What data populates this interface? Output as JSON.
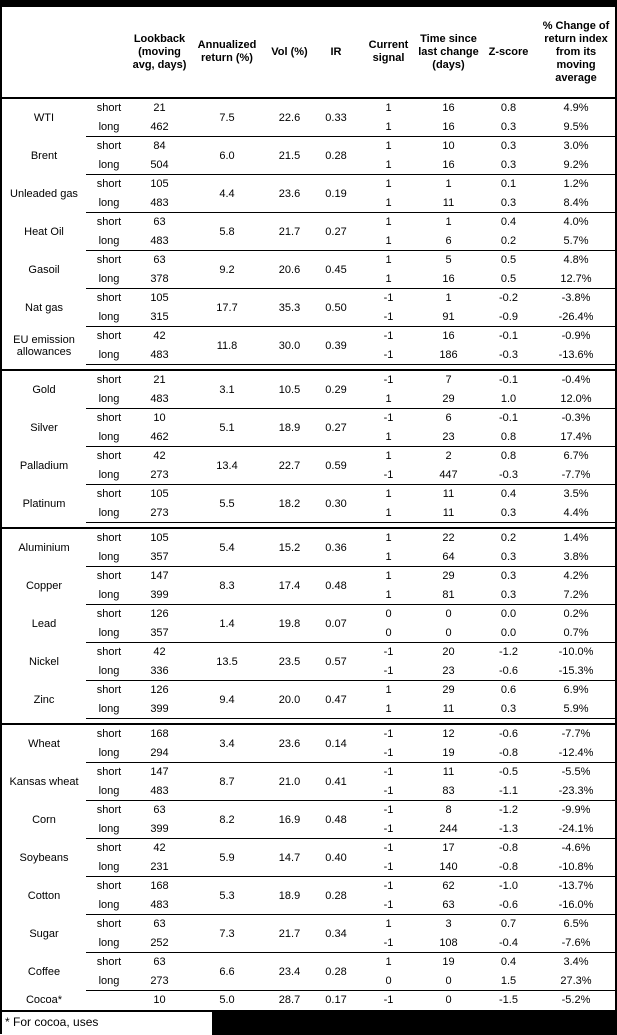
{
  "colors": {
    "text": "#000000",
    "background": "#ffffff",
    "rule": "#000000"
  },
  "table": {
    "columns": [
      {
        "key": "name",
        "label": ""
      },
      {
        "key": "position",
        "label": ""
      },
      {
        "key": "lookback",
        "label": "Lookback\n(moving\navg, days)"
      },
      {
        "key": "annualized-return",
        "label": "Annualized\nreturn (%)"
      },
      {
        "key": "vol",
        "label": "Vol (%)"
      },
      {
        "key": "ir",
        "label": "IR"
      },
      {
        "key": "current-signal",
        "label": "Current\nsignal"
      },
      {
        "key": "time-since-last-change",
        "label": "Time since\nlast change\n(days)"
      },
      {
        "key": "z-score",
        "label": "Z-score"
      },
      {
        "key": "pct-change",
        "label": "% Change of\nreturn index\nfrom its\nmoving\naverage"
      }
    ],
    "groups": [
      {
        "name": "WTI",
        "ann": "7.5",
        "vol": "22.6",
        "ir": "0.33",
        "rows": [
          {
            "pos": "short",
            "lookback": "21",
            "signal": "1",
            "time": "16",
            "z": "0.8",
            "pct": "4.9%"
          },
          {
            "pos": "long",
            "lookback": "462",
            "signal": "1",
            "time": "16",
            "z": "0.3",
            "pct": "9.5%"
          }
        ]
      },
      {
        "name": "Brent",
        "ann": "6.0",
        "vol": "21.5",
        "ir": "0.28",
        "rows": [
          {
            "pos": "short",
            "lookback": "84",
            "signal": "1",
            "time": "10",
            "z": "0.3",
            "pct": "3.0%"
          },
          {
            "pos": "long",
            "lookback": "504",
            "signal": "1",
            "time": "16",
            "z": "0.3",
            "pct": "9.2%"
          }
        ]
      },
      {
        "name": "Unleaded gas",
        "ann": "4.4",
        "vol": "23.6",
        "ir": "0.19",
        "rows": [
          {
            "pos": "short",
            "lookback": "105",
            "signal": "1",
            "time": "1",
            "z": "0.1",
            "pct": "1.2%"
          },
          {
            "pos": "long",
            "lookback": "483",
            "signal": "1",
            "time": "11",
            "z": "0.3",
            "pct": "8.4%"
          }
        ]
      },
      {
        "name": "Heat Oil",
        "ann": "5.8",
        "vol": "21.7",
        "ir": "0.27",
        "rows": [
          {
            "pos": "short",
            "lookback": "63",
            "signal": "1",
            "time": "1",
            "z": "0.4",
            "pct": "4.0%"
          },
          {
            "pos": "long",
            "lookback": "483",
            "signal": "1",
            "time": "6",
            "z": "0.2",
            "pct": "5.7%"
          }
        ]
      },
      {
        "name": "Gasoil",
        "ann": "9.2",
        "vol": "20.6",
        "ir": "0.45",
        "rows": [
          {
            "pos": "short",
            "lookback": "63",
            "signal": "1",
            "time": "5",
            "z": "0.5",
            "pct": "4.8%"
          },
          {
            "pos": "long",
            "lookback": "378",
            "signal": "1",
            "time": "16",
            "z": "0.5",
            "pct": "12.7%"
          }
        ]
      },
      {
        "name": "Nat gas",
        "ann": "17.7",
        "vol": "35.3",
        "ir": "0.50",
        "rows": [
          {
            "pos": "short",
            "lookback": "105",
            "signal": "-1",
            "time": "1",
            "z": "-0.2",
            "pct": "-3.8%"
          },
          {
            "pos": "long",
            "lookback": "315",
            "signal": "-1",
            "time": "91",
            "z": "-0.9",
            "pct": "-26.4%"
          }
        ]
      },
      {
        "name": "EU emission allowances",
        "ann": "11.8",
        "vol": "30.0",
        "ir": "0.39",
        "rows": [
          {
            "pos": "short",
            "lookback": "42",
            "signal": "-1",
            "time": "16",
            "z": "-0.1",
            "pct": "-0.9%"
          },
          {
            "pos": "long",
            "lookback": "483",
            "signal": "-1",
            "time": "186",
            "z": "-0.3",
            "pct": "-13.6%"
          }
        ]
      },
      {
        "name": "Gold",
        "section": true,
        "ann": "3.1",
        "vol": "10.5",
        "ir": "0.29",
        "rows": [
          {
            "pos": "short",
            "lookback": "21",
            "signal": "-1",
            "time": "7",
            "z": "-0.1",
            "pct": "-0.4%"
          },
          {
            "pos": "long",
            "lookback": "483",
            "signal": "1",
            "time": "29",
            "z": "1.0",
            "pct": "12.0%"
          }
        ]
      },
      {
        "name": "Silver",
        "ann": "5.1",
        "vol": "18.9",
        "ir": "0.27",
        "rows": [
          {
            "pos": "short",
            "lookback": "10",
            "signal": "-1",
            "time": "6",
            "z": "-0.1",
            "pct": "-0.3%"
          },
          {
            "pos": "long",
            "lookback": "462",
            "signal": "1",
            "time": "23",
            "z": "0.8",
            "pct": "17.4%"
          }
        ]
      },
      {
        "name": "Palladium",
        "ann": "13.4",
        "vol": "22.7",
        "ir": "0.59",
        "rows": [
          {
            "pos": "short",
            "lookback": "42",
            "signal": "1",
            "time": "2",
            "z": "0.8",
            "pct": "6.7%"
          },
          {
            "pos": "long",
            "lookback": "273",
            "signal": "-1",
            "time": "447",
            "z": "-0.3",
            "pct": "-7.7%"
          }
        ]
      },
      {
        "name": "Platinum",
        "ann": "5.5",
        "vol": "18.2",
        "ir": "0.30",
        "rows": [
          {
            "pos": "short",
            "lookback": "105",
            "signal": "1",
            "time": "11",
            "z": "0.4",
            "pct": "3.5%"
          },
          {
            "pos": "long",
            "lookback": "273",
            "signal": "1",
            "time": "11",
            "z": "0.3",
            "pct": "4.4%"
          }
        ]
      },
      {
        "name": "Aluminium",
        "section": true,
        "ann": "5.4",
        "vol": "15.2",
        "ir": "0.36",
        "rows": [
          {
            "pos": "short",
            "lookback": "105",
            "signal": "1",
            "time": "22",
            "z": "0.2",
            "pct": "1.4%"
          },
          {
            "pos": "long",
            "lookback": "357",
            "signal": "1",
            "time": "64",
            "z": "0.3",
            "pct": "3.8%"
          }
        ]
      },
      {
        "name": "Copper",
        "ann": "8.3",
        "vol": "17.4",
        "ir": "0.48",
        "rows": [
          {
            "pos": "short",
            "lookback": "147",
            "signal": "1",
            "time": "29",
            "z": "0.3",
            "pct": "4.2%"
          },
          {
            "pos": "long",
            "lookback": "399",
            "signal": "1",
            "time": "81",
            "z": "0.3",
            "pct": "7.2%"
          }
        ]
      },
      {
        "name": "Lead",
        "ann": "1.4",
        "vol": "19.8",
        "ir": "0.07",
        "rows": [
          {
            "pos": "short",
            "lookback": "126",
            "signal": "0",
            "time": "0",
            "z": "0.0",
            "pct": "0.2%"
          },
          {
            "pos": "long",
            "lookback": "357",
            "signal": "0",
            "time": "0",
            "z": "0.0",
            "pct": "0.7%"
          }
        ]
      },
      {
        "name": "Nickel",
        "ann": "13.5",
        "vol": "23.5",
        "ir": "0.57",
        "rows": [
          {
            "pos": "short",
            "lookback": "42",
            "signal": "-1",
            "time": "20",
            "z": "-1.2",
            "pct": "-10.0%"
          },
          {
            "pos": "long",
            "lookback": "336",
            "signal": "-1",
            "time": "23",
            "z": "-0.6",
            "pct": "-15.3%"
          }
        ]
      },
      {
        "name": "Zinc",
        "ann": "9.4",
        "vol": "20.0",
        "ir": "0.47",
        "rows": [
          {
            "pos": "short",
            "lookback": "126",
            "signal": "1",
            "time": "29",
            "z": "0.6",
            "pct": "6.9%"
          },
          {
            "pos": "long",
            "lookback": "399",
            "signal": "1",
            "time": "11",
            "z": "0.3",
            "pct": "5.9%"
          }
        ]
      },
      {
        "name": "Wheat",
        "section": true,
        "ann": "3.4",
        "vol": "23.6",
        "ir": "0.14",
        "rows": [
          {
            "pos": "short",
            "lookback": "168",
            "signal": "-1",
            "time": "12",
            "z": "-0.6",
            "pct": "-7.7%"
          },
          {
            "pos": "long",
            "lookback": "294",
            "signal": "-1",
            "time": "19",
            "z": "-0.8",
            "pct": "-12.4%"
          }
        ]
      },
      {
        "name": "Kansas wheat",
        "ann": "8.7",
        "vol": "21.0",
        "ir": "0.41",
        "rows": [
          {
            "pos": "short",
            "lookback": "147",
            "signal": "-1",
            "time": "11",
            "z": "-0.5",
            "pct": "-5.5%"
          },
          {
            "pos": "long",
            "lookback": "483",
            "signal": "-1",
            "time": "83",
            "z": "-1.1",
            "pct": "-23.3%"
          }
        ]
      },
      {
        "name": "Corn",
        "ann": "8.2",
        "vol": "16.9",
        "ir": "0.48",
        "rows": [
          {
            "pos": "short",
            "lookback": "63",
            "signal": "-1",
            "time": "8",
            "z": "-1.2",
            "pct": "-9.9%"
          },
          {
            "pos": "long",
            "lookback": "399",
            "signal": "-1",
            "time": "244",
            "z": "-1.3",
            "pct": "-24.1%"
          }
        ]
      },
      {
        "name": "Soybeans",
        "ann": "5.9",
        "vol": "14.7",
        "ir": "0.40",
        "rows": [
          {
            "pos": "short",
            "lookback": "42",
            "signal": "-1",
            "time": "17",
            "z": "-0.8",
            "pct": "-4.6%"
          },
          {
            "pos": "long",
            "lookback": "231",
            "signal": "-1",
            "time": "140",
            "z": "-0.8",
            "pct": "-10.8%"
          }
        ]
      },
      {
        "name": "Cotton",
        "ann": "5.3",
        "vol": "18.9",
        "ir": "0.28",
        "rows": [
          {
            "pos": "short",
            "lookback": "168",
            "signal": "-1",
            "time": "62",
            "z": "-1.0",
            "pct": "-13.7%"
          },
          {
            "pos": "long",
            "lookback": "483",
            "signal": "-1",
            "time": "63",
            "z": "-0.6",
            "pct": "-16.0%"
          }
        ]
      },
      {
        "name": "Sugar",
        "ann": "7.3",
        "vol": "21.7",
        "ir": "0.34",
        "rows": [
          {
            "pos": "short",
            "lookback": "63",
            "signal": "1",
            "time": "3",
            "z": "0.7",
            "pct": "6.5%"
          },
          {
            "pos": "long",
            "lookback": "252",
            "signal": "-1",
            "time": "108",
            "z": "-0.4",
            "pct": "-7.6%"
          }
        ]
      },
      {
        "name": "Coffee",
        "ann": "6.6",
        "vol": "23.4",
        "ir": "0.28",
        "rows": [
          {
            "pos": "short",
            "lookback": "63",
            "signal": "1",
            "time": "19",
            "z": "0.4",
            "pct": "3.4%"
          },
          {
            "pos": "long",
            "lookback": "273",
            "signal": "0",
            "time": "0",
            "z": "1.5",
            "pct": "27.3%"
          }
        ]
      },
      {
        "name": "Cocoa*",
        "ann": "5.0",
        "vol": "28.7",
        "ir": "0.17",
        "rows": [
          {
            "pos": "",
            "lookback": "10",
            "signal": "-1",
            "time": "0",
            "z": "-1.5",
            "pct": "-5.2%"
          }
        ]
      }
    ],
    "footnote": "* For cocoa, uses"
  }
}
